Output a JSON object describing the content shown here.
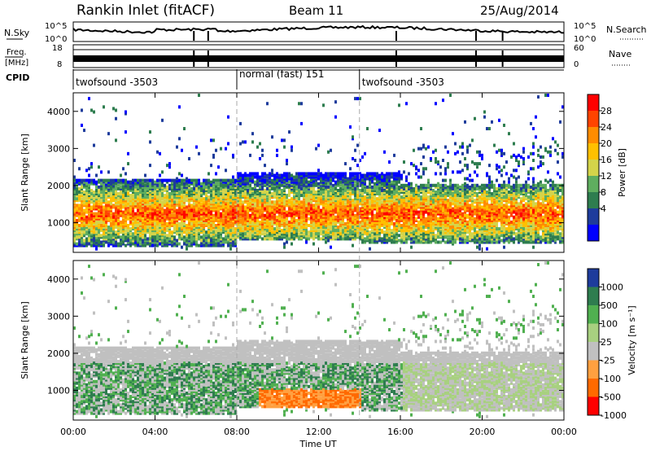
{
  "header": {
    "station": "Rankin Inlet (fitACF)",
    "beam": "Beam 11",
    "date": "25/Aug/2014"
  },
  "top_panels": {
    "nsky_label": "N.Sky",
    "nsky_ticks": [
      "10^5",
      "10^0"
    ],
    "nsearch_label": "N.Search",
    "nsearch_ticks": [
      "10^5",
      "10^0"
    ],
    "freq_label": "Freq.",
    "freq_unit": "[MHz]",
    "freq_ticks": [
      "18",
      "8"
    ],
    "nave_label": "Nave",
    "nave_ticks": [
      "60",
      "0"
    ],
    "cpid_label": "CPID",
    "cpid_segments": [
      {
        "label": "twofsound -3503",
        "start_h": 0,
        "end_h": 8
      },
      {
        "label": "normal (fast) 151",
        "start_h": 8,
        "end_h": 14
      },
      {
        "label": "twofsound -3503",
        "start_h": 14,
        "end_h": 24
      }
    ]
  },
  "power_panel": {
    "ylabel": "Slant Range [km]",
    "yticks": [
      "4000",
      "3000",
      "2000",
      "1000"
    ],
    "colorbar_label": "Power [dB]",
    "colorbar_ticks": [
      "28",
      "24",
      "20",
      "16",
      "12",
      "8",
      "4"
    ],
    "colors": [
      "#ff0000",
      "#ff4400",
      "#ff8c00",
      "#ffc000",
      "#d4d44a",
      "#5fae5f",
      "#2e7d4f",
      "#1e3c9c",
      "#0000ff"
    ]
  },
  "velocity_panel": {
    "ylabel": "Slant Range [km]",
    "yticks": [
      "4000",
      "3000",
      "2000",
      "1000"
    ],
    "colorbar_label": "Velocity [m s⁻¹]",
    "colorbar_ticks": [
      "1000",
      "500",
      "100",
      "25",
      "-25",
      "-100",
      "-500",
      "-1000"
    ],
    "colors": [
      "#1e3c9c",
      "#2e7d4f",
      "#50b050",
      "#a8d080",
      "#c0c0c0",
      "#ffa040",
      "#ff6a00",
      "#ff0000"
    ]
  },
  "x_axis": {
    "ticks": [
      "00:00",
      "04:00",
      "08:00",
      "12:00",
      "16:00",
      "20:00",
      "00:00"
    ],
    "label": "Time UT"
  },
  "chart_data": {
    "type": "heatmap",
    "x_range_hours": [
      0,
      24
    ],
    "y_range_km": [
      200,
      4500
    ],
    "power_range_db": [
      0,
      30
    ],
    "velocity_range": [
      -1000,
      1000
    ],
    "scan_mode_changes_h": [
      8,
      14
    ]
  }
}
